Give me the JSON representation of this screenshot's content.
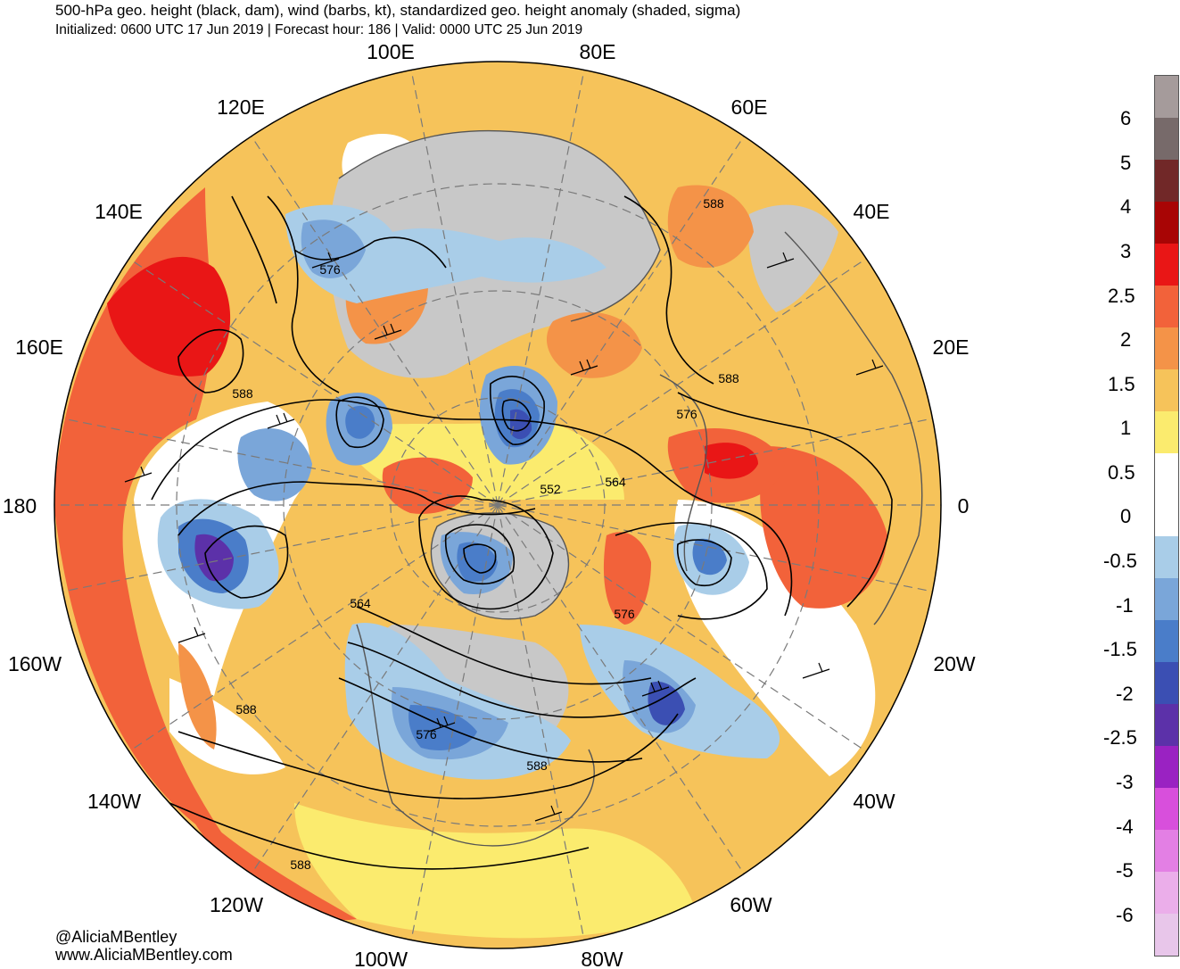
{
  "header": {
    "title": "500-hPa geo. height (black, dam), wind (barbs, kt), standardized geo. height anomaly (shaded, sigma)",
    "subtitle": "Initialized: 0600 UTC 17 Jun 2019 | Forecast hour: 186 | Valid: 0000 UTC 25 Jun 2019"
  },
  "map": {
    "projection": "north-polar-stereographic",
    "longitude_labels": [
      {
        "text": "100E",
        "lon": 100
      },
      {
        "text": "80E",
        "lon": 80
      },
      {
        "text": "120E",
        "lon": 120
      },
      {
        "text": "60E",
        "lon": 60
      },
      {
        "text": "140E",
        "lon": 140
      },
      {
        "text": "40E",
        "lon": 40
      },
      {
        "text": "160E",
        "lon": 160
      },
      {
        "text": "20E",
        "lon": 20
      },
      {
        "text": "180",
        "lon": 180
      },
      {
        "text": "0",
        "lon": 0
      },
      {
        "text": "160W",
        "lon": -160
      },
      {
        "text": "20W",
        "lon": -20
      },
      {
        "text": "140W",
        "lon": -140
      },
      {
        "text": "40W",
        "lon": -40
      },
      {
        "text": "120W",
        "lon": -120
      },
      {
        "text": "60W",
        "lon": -60
      },
      {
        "text": "100W",
        "lon": -100
      },
      {
        "text": "80W",
        "lon": -80
      }
    ],
    "contour_labels": [
      "588",
      "588",
      "576",
      "588",
      "576",
      "564",
      "552",
      "564",
      "576",
      "564",
      "588",
      "576",
      "588",
      "588"
    ],
    "colors": {
      "land_gray": "#c8c8c8",
      "coast": "#555555",
      "contour": "#000000"
    }
  },
  "colorbar": {
    "labels": [
      "6",
      "5",
      "4",
      "3",
      "2.5",
      "2",
      "1.5",
      "1",
      "0.5",
      "0",
      "-0.5",
      "-1",
      "-1.5",
      "-2",
      "-2.5",
      "-3",
      "-4",
      "-5",
      "-6"
    ],
    "colors": [
      "#a59b9b",
      "#776a6a",
      "#712828",
      "#a80505",
      "#e91616",
      "#f2623a",
      "#f49348",
      "#f6c35a",
      "#fbeb6e",
      "#ffffff",
      "#ffffff",
      "#a9cde8",
      "#7aa6d9",
      "#4a7dc9",
      "#3b4fb3",
      "#5c31a9",
      "#9a22c2",
      "#d84fdc",
      "#e37fe4",
      "#ebaeea",
      "#e8c6ea"
    ]
  },
  "credits": {
    "handle": "@AliciaMBentley",
    "website": "www.AliciaMBentley.com"
  }
}
